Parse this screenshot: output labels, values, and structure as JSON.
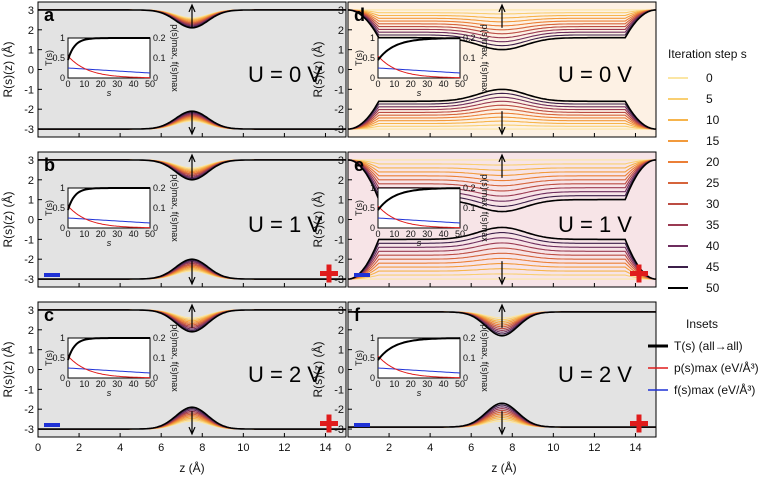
{
  "figure": {
    "x_axis_label": "z (Å)",
    "y_axis_label_left": "R(s)(z) (Å)",
    "y_axis_label_right": "R(s)(z) (Å)",
    "x_ticks": [
      "0",
      "2",
      "4",
      "6",
      "8",
      "10",
      "12",
      "14"
    ],
    "y_ticks": [
      "3",
      "2",
      "1",
      "0",
      "-1",
      "-2",
      "-3"
    ],
    "inset_x_ticks": [
      "0",
      "10",
      "20",
      "30",
      "40",
      "50"
    ],
    "inset_x_label": "s",
    "inset_y_left_ticks": [
      "0",
      "0.5",
      "1"
    ],
    "inset_y_right_ticks": [
      "0",
      "0.1",
      "0.2"
    ],
    "inset_y_left_label": "T(s)",
    "inset_y_right_label": "p(s)max, f(s)max",
    "panels": [
      {
        "id": "a",
        "letter": "a",
        "voltage": "U = 0 V",
        "kind": "narrow"
      },
      {
        "id": "b",
        "letter": "b",
        "voltage": "U = 1 V",
        "kind": "narrow"
      },
      {
        "id": "c",
        "letter": "c",
        "voltage": "U = 2 V",
        "kind": "narrow"
      },
      {
        "id": "d",
        "letter": "d",
        "voltage": "U = 0 V",
        "kind": "wide"
      },
      {
        "id": "e",
        "letter": "e",
        "voltage": "U = 1 V",
        "kind": "wide"
      },
      {
        "id": "f",
        "letter": "f",
        "voltage": "U = 2 V",
        "kind": "narrow"
      }
    ]
  },
  "legend": {
    "title": "Iteration step s",
    "items": [
      {
        "label": "0",
        "color": "#fbe6a4"
      },
      {
        "label": "5",
        "color": "#f9cf72"
      },
      {
        "label": "10",
        "color": "#f6b44c"
      },
      {
        "label": "15",
        "color": "#f29a3c"
      },
      {
        "label": "20",
        "color": "#eb7f37"
      },
      {
        "label": "25",
        "color": "#d6643b"
      },
      {
        "label": "30",
        "color": "#bc4c43"
      },
      {
        "label": "35",
        "color": "#9a3a52"
      },
      {
        "label": "40",
        "color": "#6e2d5e"
      },
      {
        "label": "45",
        "color": "#3c1f4a"
      },
      {
        "label": "50",
        "color": "#000000"
      }
    ],
    "insets_title": "Insets",
    "inset_items": [
      {
        "label": "T(s) (all→all)",
        "color": "#000000"
      },
      {
        "label": "p(s)max (eV/Å³)",
        "color": "#e01c1c"
      },
      {
        "label": "f(s)max (eV/Å³)",
        "color": "#1f32d6"
      }
    ]
  },
  "chart_data": [
    {
      "type": "line",
      "panel": "a",
      "title": "U = 0 V",
      "xlabel": "z (Å)",
      "ylabel": "R(s)(z) (Å)",
      "xlim": [
        0,
        15
      ],
      "ylim": [
        -3.4,
        3.4
      ],
      "constriction_center": 7.5,
      "radius_far": 3.0,
      "radius_min": [
        2.6,
        2.1
      ]
    },
    {
      "type": "line",
      "panel": "b",
      "title": "U = 1 V",
      "xlabel": "z (Å)",
      "ylabel": "R(s)(z) (Å)",
      "xlim": [
        0,
        15
      ],
      "ylim": [
        -3.4,
        3.4
      ],
      "constriction_center": 7.5,
      "radius_far": 3.0,
      "radius_min": [
        2.6,
        2.0
      ]
    },
    {
      "type": "line",
      "panel": "c",
      "title": "U = 2 V",
      "xlabel": "z (Å)",
      "ylabel": "R(s)(z) (Å)",
      "xlim": [
        0,
        15
      ],
      "ylim": [
        -3.4,
        3.4
      ],
      "constriction_center": 7.5,
      "radius_far": 3.0,
      "radius_min": [
        2.6,
        1.9
      ]
    },
    {
      "type": "line",
      "panel": "d",
      "title": "U = 0 V",
      "xlabel": "z (Å)",
      "ylabel": "R(s)(z) (Å)",
      "xlim": [
        0,
        15
      ],
      "ylim": [
        -3.4,
        3.4
      ],
      "constriction_center": 7.5,
      "radius_end": 3.0,
      "radius_initial": 3.0,
      "radius_final_plateau": 1.6
    },
    {
      "type": "line",
      "panel": "e",
      "title": "U = 1 V",
      "xlabel": "z (Å)",
      "ylabel": "R(s)(z) (Å)",
      "xlim": [
        0,
        15
      ],
      "ylim": [
        -3.4,
        3.4
      ],
      "constriction_center": 7.5,
      "radius_end": 3.0,
      "radius_initial": 3.0,
      "radius_final_plateau": 1.0
    },
    {
      "type": "line",
      "panel": "f",
      "title": "U = 2 V",
      "xlabel": "z (Å)",
      "ylabel": "R(s)(z) (Å)",
      "xlim": [
        0,
        15
      ],
      "ylim": [
        -3.4,
        3.4
      ],
      "constriction_center": 7.5,
      "radius_far": 2.9,
      "radius_min": [
        2.6,
        1.7
      ]
    }
  ]
}
